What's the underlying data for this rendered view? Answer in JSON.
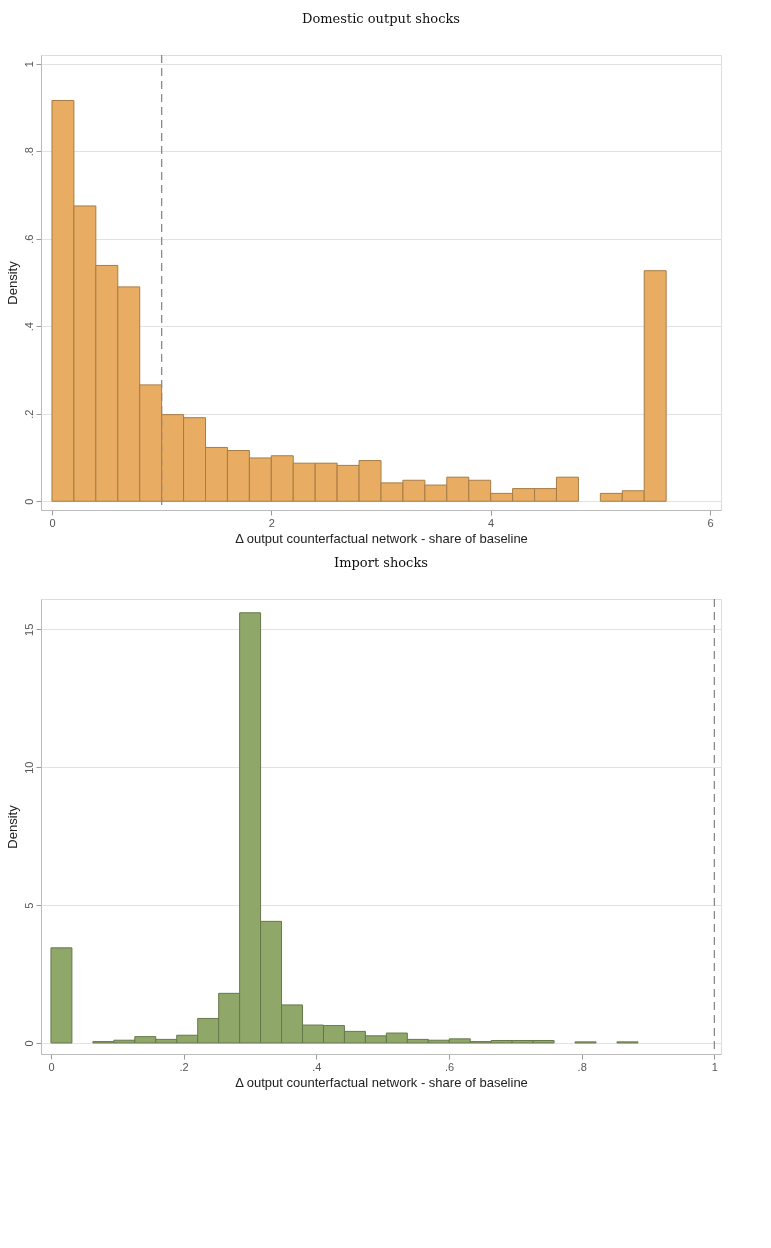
{
  "chart_data": [
    {
      "type": "histogram",
      "title": "Domestic output shocks",
      "xlabel": "Δ output counterfactual network - share of baseline",
      "ylabel": "Density",
      "bins": [
        0,
        0.2,
        0.4,
        0.6,
        0.8,
        1.0,
        1.2,
        1.4,
        1.6,
        1.8,
        2.0,
        2.2,
        2.4,
        2.6,
        2.8,
        3.0,
        3.2,
        3.4,
        3.6,
        3.8,
        4.0,
        4.2,
        4.4,
        4.6,
        4.8,
        5.0,
        5.2,
        5.4,
        5.6
      ],
      "values": [
        0.916,
        0.675,
        0.539,
        0.49,
        0.266,
        0.198,
        0.191,
        0.123,
        0.116,
        0.099,
        0.104,
        0.087,
        0.087,
        0.082,
        0.093,
        0.042,
        0.048,
        0.037,
        0.055,
        0.048,
        0.018,
        0.029,
        0.029,
        0.055,
        0,
        0.018,
        0.024,
        0.527
      ],
      "color": "#e8ad62",
      "xlim": [
        -0.1,
        6.1
      ],
      "xticks": [
        0,
        2,
        4,
        6
      ],
      "ylim": [
        -0.02,
        1.02
      ],
      "yticks": [
        0,
        {
          "value": 0.2,
          "label": ".2"
        },
        {
          "value": 0.4,
          "label": ".4"
        },
        {
          "value": 0.6,
          "label": ".6"
        },
        {
          "value": 0.8,
          "label": ".8"
        },
        1
      ],
      "grid": "y",
      "ref_lines": [
        {
          "axis": "x",
          "value": 1,
          "color": "#8a8a8a",
          "line_style": "dashed"
        }
      ]
    },
    {
      "type": "histogram",
      "title": "Import shocks",
      "xlabel": "Δ output counterfactual network - share of baseline",
      "ylabel": "Density",
      "bins": [
        0,
        0.0316,
        0.0632,
        0.0948,
        0.1264,
        0.158,
        0.1896,
        0.2212,
        0.2528,
        0.2844,
        0.316,
        0.3476,
        0.3792,
        0.4108,
        0.4424,
        0.474,
        0.5056,
        0.5372,
        0.5688,
        0.6004,
        0.632,
        0.6636,
        0.6952,
        0.7268,
        0.7584,
        0.79,
        0.8216,
        0.8532,
        0.8848
      ],
      "values": [
        3.45,
        0,
        0.05,
        0.1,
        0.23,
        0.13,
        0.28,
        0.89,
        1.8,
        15.6,
        4.41,
        1.38,
        0.65,
        0.63,
        0.42,
        0.26,
        0.36,
        0.13,
        0.1,
        0.15,
        0.05,
        0.09,
        0.09,
        0.09,
        0,
        0.04,
        0,
        0.04
      ],
      "color": "#8fa86a",
      "xlim": [
        -0.015,
        1.01
      ],
      "xticks": [
        0,
        {
          "value": 0.2,
          "label": ".2"
        },
        {
          "value": 0.4,
          "label": ".4"
        },
        {
          "value": 0.6,
          "label": ".6"
        },
        {
          "value": 0.8,
          "label": ".8"
        },
        1
      ],
      "ylim": [
        -0.4,
        16.1
      ],
      "yticks": [
        0,
        5,
        10,
        15
      ],
      "grid": "y",
      "ref_lines": [
        {
          "axis": "x",
          "value": 1,
          "color": "#8a8a8a",
          "line_style": "dashed"
        }
      ]
    }
  ]
}
